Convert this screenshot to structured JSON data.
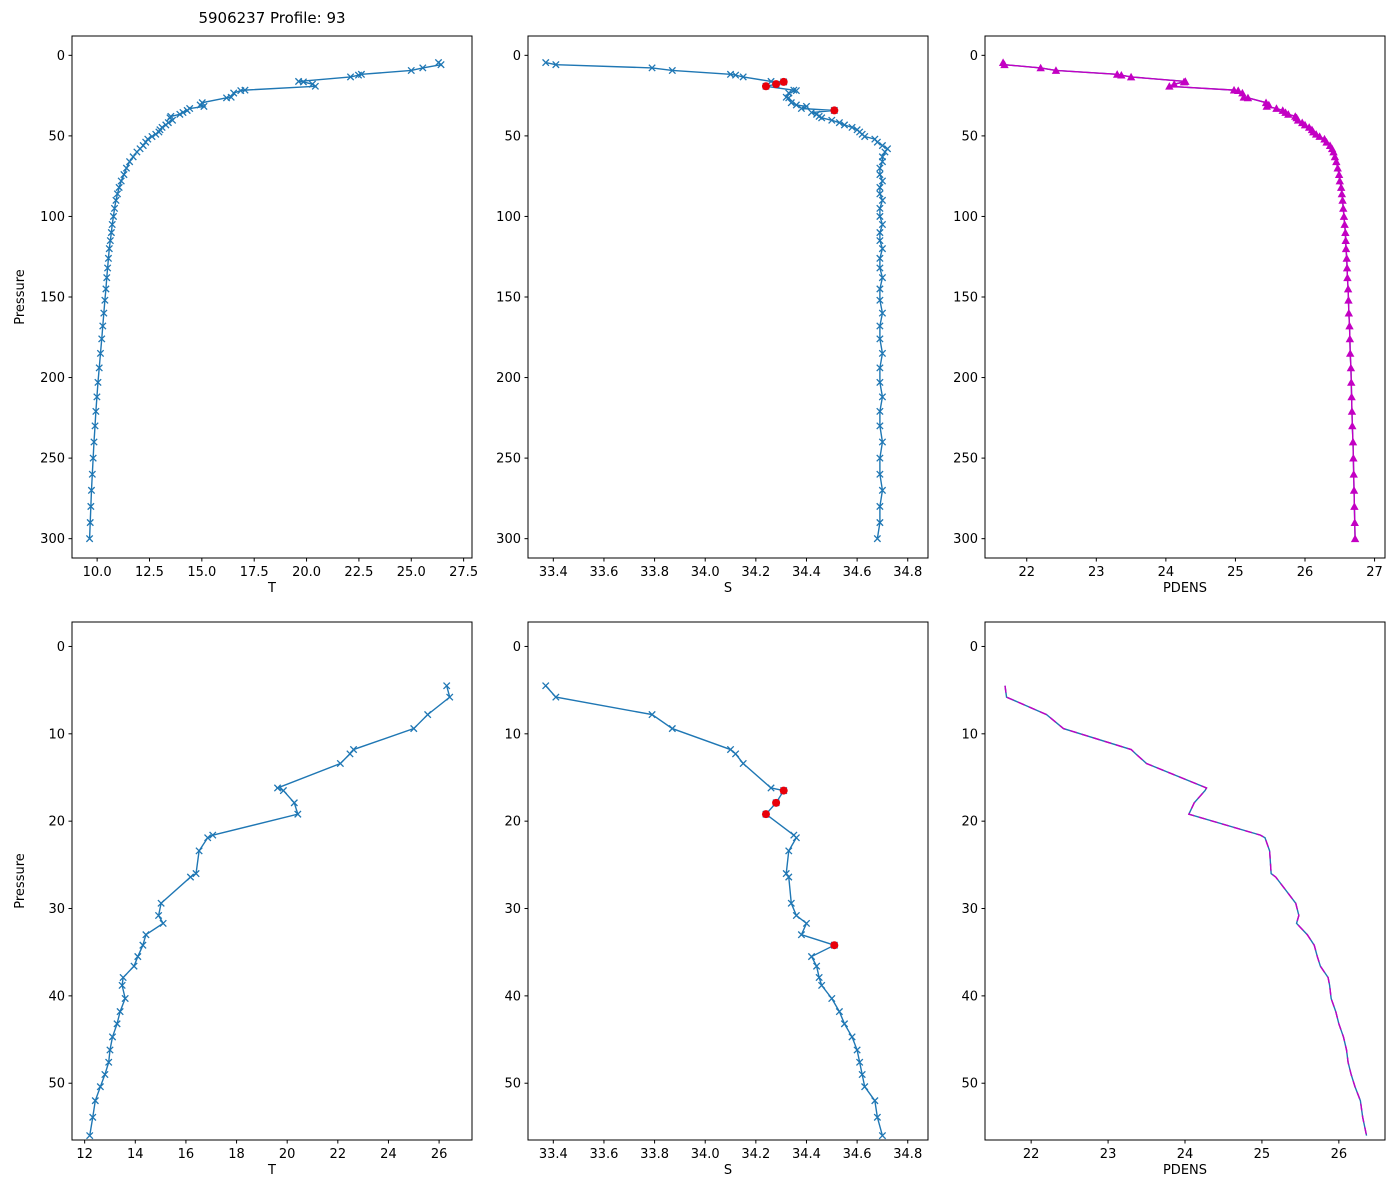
{
  "chart_data": {
    "type": "line",
    "title": "5906237 Profile: 93",
    "description": "Float profile plots: T, S, PDENS vs Pressure (full depth top row, upper-55 dbar zoom bottom row)",
    "colors": {
      "blue": "#1f77b4",
      "magenta": "#c300c3",
      "red": "#e8000b"
    },
    "zoom_max_pressure": 56.3,
    "profile": {
      "pressure": [
        4.5,
        5.8,
        7.8,
        9.4,
        11.8,
        12.3,
        13.4,
        16.2,
        16.5,
        17.9,
        19.2,
        21.6,
        21.9,
        23.4,
        26.0,
        26.4,
        29.4,
        30.8,
        31.7,
        33.0,
        34.2,
        35.5,
        36.6,
        37.9,
        38.8,
        40.3,
        41.8,
        43.2,
        44.7,
        46.2,
        47.6,
        49.0,
        50.4,
        52.0,
        53.9,
        56.0,
        58.0,
        60.0,
        63.0,
        66.0,
        70.0,
        74.0,
        78.0,
        82.0,
        86.0,
        90.0,
        95.0,
        100,
        105,
        110,
        115,
        120,
        126,
        132,
        138,
        145,
        152,
        160,
        168,
        176,
        185,
        194,
        203,
        212,
        221,
        230,
        240,
        250,
        260,
        270,
        280,
        290,
        300
      ],
      "T": [
        26.3,
        26.42,
        25.55,
        25.0,
        22.62,
        22.48,
        22.1,
        19.62,
        19.85,
        20.28,
        20.42,
        17.06,
        16.86,
        16.52,
        16.4,
        16.18,
        15.02,
        14.92,
        15.1,
        14.42,
        14.3,
        14.1,
        13.95,
        13.52,
        13.48,
        13.6,
        13.4,
        13.28,
        13.1,
        13.0,
        12.95,
        12.8,
        12.62,
        12.42,
        12.32,
        12.2,
        12.05,
        11.9,
        11.72,
        11.55,
        11.4,
        11.28,
        11.15,
        11.05,
        10.97,
        10.9,
        10.83,
        10.78,
        10.72,
        10.68,
        10.63,
        10.58,
        10.54,
        10.5,
        10.46,
        10.42,
        10.37,
        10.32,
        10.27,
        10.22,
        10.16,
        10.1,
        10.04,
        9.99,
        9.94,
        9.9,
        9.85,
        9.81,
        9.77,
        9.73,
        9.7,
        9.67,
        9.64
      ],
      "S": [
        33.37,
        33.41,
        33.79,
        33.87,
        34.1,
        34.12,
        34.15,
        34.26,
        34.31,
        34.28,
        34.24,
        34.35,
        34.36,
        34.33,
        34.32,
        34.33,
        34.34,
        34.36,
        34.4,
        34.38,
        34.51,
        34.42,
        34.44,
        34.45,
        34.46,
        34.5,
        34.53,
        34.55,
        34.58,
        34.6,
        34.61,
        34.62,
        34.63,
        34.67,
        34.68,
        34.7,
        34.72,
        34.71,
        34.7,
        34.7,
        34.69,
        34.69,
        34.7,
        34.69,
        34.69,
        34.7,
        34.69,
        34.69,
        34.7,
        34.69,
        34.69,
        34.7,
        34.69,
        34.69,
        34.7,
        34.69,
        34.69,
        34.7,
        34.69,
        34.69,
        34.7,
        34.69,
        34.69,
        34.7,
        34.69,
        34.69,
        34.7,
        34.69,
        34.69,
        34.7,
        34.69,
        34.69,
        34.68
      ],
      "PDENS": [
        21.66,
        21.68,
        22.2,
        22.42,
        23.3,
        23.36,
        23.5,
        24.28,
        24.26,
        24.12,
        24.05,
        24.98,
        25.04,
        25.1,
        25.12,
        25.18,
        25.44,
        25.48,
        25.45,
        25.59,
        25.68,
        25.72,
        25.76,
        25.86,
        25.88,
        25.9,
        25.96,
        26.0,
        26.06,
        26.1,
        26.12,
        26.16,
        26.21,
        26.28,
        26.31,
        26.36,
        26.39,
        26.41,
        26.43,
        26.45,
        26.47,
        26.49,
        26.5,
        26.52,
        26.53,
        26.54,
        26.55,
        26.56,
        26.57,
        26.58,
        26.585,
        26.59,
        26.6,
        26.605,
        26.61,
        26.62,
        26.625,
        26.63,
        26.64,
        26.645,
        26.65,
        26.66,
        26.665,
        26.67,
        26.675,
        26.68,
        26.69,
        26.695,
        26.7,
        26.705,
        26.71,
        26.715,
        26.72
      ]
    },
    "flagged_S": [
      {
        "S": 34.31,
        "pressure": 16.5
      },
      {
        "S": 34.28,
        "pressure": 17.9
      },
      {
        "S": 34.24,
        "pressure": 19.2
      },
      {
        "S": 34.51,
        "pressure": 34.2
      }
    ],
    "panels": [
      {
        "name": "temperature-full",
        "title": "5906237 Profile: 93",
        "xlabel": "T",
        "ylabel": "Pressure",
        "zoom": false,
        "flagged": false,
        "xlim": [
          8.8,
          27.9
        ],
        "xticks": [
          10,
          12.5,
          15,
          17.5,
          20,
          22.5,
          25,
          27.5
        ],
        "xtick_labels": [
          "10.0",
          "12.5",
          "15.0",
          "17.5",
          "20.0",
          "22.5",
          "25.0",
          "27.5"
        ],
        "ylim": [
          -12,
          312
        ],
        "yticks": [
          0,
          50,
          100,
          150,
          200,
          250,
          300
        ],
        "series": [
          {
            "var": "T",
            "color": "blue",
            "line": true,
            "marker": "x"
          }
        ]
      },
      {
        "name": "salinity-full",
        "xlabel": "S",
        "zoom": false,
        "flagged": true,
        "xlim": [
          33.3,
          34.88
        ],
        "xticks": [
          33.4,
          33.6,
          33.8,
          34.0,
          34.2,
          34.4,
          34.6,
          34.8
        ],
        "xtick_labels": [
          "33.4",
          "33.6",
          "33.8",
          "34.0",
          "34.2",
          "34.4",
          "34.6",
          "34.8"
        ],
        "ylim": [
          -12,
          312
        ],
        "yticks": [
          0,
          50,
          100,
          150,
          200,
          250,
          300
        ],
        "series": [
          {
            "var": "S",
            "color": "blue",
            "line": true,
            "marker": "x"
          }
        ]
      },
      {
        "name": "pdens-full",
        "xlabel": "PDENS",
        "zoom": false,
        "flagged": false,
        "xlim": [
          21.4,
          27.15
        ],
        "xticks": [
          22,
          23,
          24,
          25,
          26,
          27
        ],
        "xtick_labels": [
          "22",
          "23",
          "24",
          "25",
          "26",
          "27"
        ],
        "ylim": [
          -12,
          312
        ],
        "yticks": [
          0,
          50,
          100,
          150,
          200,
          250,
          300
        ],
        "series": [
          {
            "var": "PDENS",
            "color": "blue",
            "line": true
          },
          {
            "var": "PDENS",
            "color": "magenta",
            "line": true,
            "marker": "triangle"
          }
        ]
      },
      {
        "name": "temperature-zoom",
        "xlabel": "T",
        "ylabel": "Pressure",
        "zoom": true,
        "flagged": false,
        "xlim": [
          11.5,
          27.3
        ],
        "xticks": [
          12,
          14,
          16,
          18,
          20,
          22,
          24,
          26
        ],
        "xtick_labels": [
          "12",
          "14",
          "16",
          "18",
          "20",
          "22",
          "24",
          "26"
        ],
        "ylim": [
          -2.8,
          56.5
        ],
        "yticks": [
          0,
          10,
          20,
          30,
          40,
          50
        ],
        "series": [
          {
            "var": "T",
            "color": "blue",
            "line": true,
            "marker": "x"
          }
        ]
      },
      {
        "name": "salinity-zoom",
        "xlabel": "S",
        "zoom": true,
        "flagged": true,
        "xlim": [
          33.3,
          34.88
        ],
        "xticks": [
          33.4,
          33.6,
          33.8,
          34.0,
          34.2,
          34.4,
          34.6,
          34.8
        ],
        "xtick_labels": [
          "33.4",
          "33.6",
          "33.8",
          "34.0",
          "34.2",
          "34.4",
          "34.6",
          "34.8"
        ],
        "ylim": [
          -2.8,
          56.5
        ],
        "yticks": [
          0,
          10,
          20,
          30,
          40,
          50
        ],
        "series": [
          {
            "var": "S",
            "color": "blue",
            "line": true,
            "marker": "x"
          }
        ]
      },
      {
        "name": "pdens-zoom",
        "xlabel": "PDENS",
        "zoom": true,
        "flagged": false,
        "xlim": [
          21.4,
          26.6
        ],
        "xticks": [
          22,
          23,
          24,
          25,
          26
        ],
        "xtick_labels": [
          "22",
          "23",
          "24",
          "25",
          "26"
        ],
        "ylim": [
          -2.8,
          56.5
        ],
        "yticks": [
          0,
          10,
          20,
          30,
          40,
          50
        ],
        "series": [
          {
            "var": "PDENS",
            "color": "blue",
            "line": true
          },
          {
            "var": "PDENS",
            "color": "magenta",
            "line": true,
            "dash": true
          }
        ]
      }
    ]
  }
}
